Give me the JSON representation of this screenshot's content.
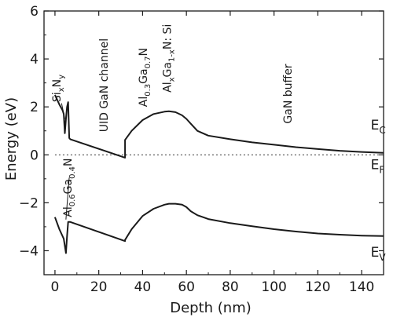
{
  "chart_data": {
    "type": "line",
    "xlabel": "Depth (nm)",
    "ylabel": "Energy (eV)",
    "xlim": [
      -5,
      150
    ],
    "ylim": [
      -5,
      6
    ],
    "xticks": [
      "0",
      "20",
      "40",
      "60",
      "80",
      "100",
      "120",
      "140"
    ],
    "yticks": [
      "-4",
      "-2",
      "0",
      "2",
      "4",
      "6"
    ],
    "grid": false,
    "series": [
      {
        "key": "ec",
        "x": [
          0,
          2,
          3.5,
          4,
          4.5,
          5,
          5.5,
          6,
          6.5,
          7,
          32,
          32,
          35,
          40,
          45,
          50,
          52,
          55,
          58,
          60,
          61,
          62,
          65,
          70,
          80,
          90,
          100,
          110,
          120,
          130,
          140,
          150
        ],
        "y": [
          2.5,
          2.1,
          1.85,
          1.7,
          0.9,
          1.5,
          2.0,
          2.2,
          0.7,
          0.65,
          -0.12,
          0.62,
          1.0,
          1.45,
          1.7,
          1.8,
          1.82,
          1.78,
          1.65,
          1.5,
          1.4,
          1.3,
          1.0,
          0.8,
          0.65,
          0.52,
          0.42,
          0.32,
          0.24,
          0.17,
          0.12,
          0.08
        ]
      },
      {
        "key": "ev",
        "x": [
          0,
          2,
          4,
          5,
          5.5,
          6,
          7,
          32,
          32,
          35,
          40,
          45,
          50,
          52,
          55,
          58,
          60,
          62,
          65,
          70,
          80,
          90,
          100,
          110,
          120,
          130,
          140,
          150
        ],
        "y": [
          -2.6,
          -3.1,
          -3.5,
          -4.1,
          -3.4,
          -2.8,
          -2.8,
          -3.6,
          -3.55,
          -3.1,
          -2.55,
          -2.25,
          -2.08,
          -2.04,
          -2.04,
          -2.08,
          -2.18,
          -2.35,
          -2.52,
          -2.68,
          -2.85,
          -2.98,
          -3.1,
          -3.2,
          -3.28,
          -3.33,
          -3.37,
          -3.39
        ]
      }
    ],
    "ef_level": 0,
    "band_labels": [
      {
        "main": "E",
        "sub": "C",
        "x": 152,
        "y": 1.05
      },
      {
        "main": "E",
        "sub": "F",
        "x": 152,
        "y": -0.6
      },
      {
        "main": "E",
        "sub": "V",
        "x": 152,
        "y": -4.25
      }
    ],
    "annotations": [
      {
        "key": "sixny",
        "parts": [
          {
            "t": "Si"
          },
          {
            "t": "x",
            "s": true
          },
          {
            "t": "N"
          },
          {
            "t": "y",
            "s": true
          }
        ],
        "x": 2.5,
        "y": 2.2,
        "rotate": -90
      },
      {
        "key": "uid",
        "parts": [
          {
            "t": "UID GaN channel"
          }
        ],
        "x": 24,
        "y": 0.95,
        "rotate": -90
      },
      {
        "key": "algan03",
        "parts": [
          {
            "t": "Al"
          },
          {
            "t": "0.3",
            "s": true
          },
          {
            "t": "Ga"
          },
          {
            "t": "0.7",
            "s": true
          },
          {
            "t": "N"
          }
        ],
        "x": 42,
        "y": 2.0,
        "rotate": -90
      },
      {
        "key": "alxgan",
        "parts": [
          {
            "t": "Al"
          },
          {
            "t": "x",
            "s": true
          },
          {
            "t": "Ga"
          },
          {
            "t": "1-x",
            "s": true
          },
          {
            "t": "N: Si"
          }
        ],
        "x": 53,
        "y": 2.6,
        "rotate": -90
      },
      {
        "key": "ganbuffer",
        "parts": [
          {
            "t": "GaN buffer"
          }
        ],
        "x": 108,
        "y": 1.3,
        "rotate": -90
      },
      {
        "key": "algan06",
        "parts": [
          {
            "t": "Al"
          },
          {
            "t": "0.6",
            "s": true
          },
          {
            "t": "Ga"
          },
          {
            "t": "0.4",
            "s": true
          },
          {
            "t": "N"
          }
        ],
        "x": 7.5,
        "y": -2.6,
        "rotate": -90
      }
    ],
    "pointers": [
      {
        "key": "sixny-pointer",
        "from": [
          3.0,
          2.15
        ],
        "to": [
          4.5,
          1.5
        ]
      },
      {
        "key": "algan06-pointer",
        "from": [
          6.5,
          -0.95
        ],
        "to": [
          5.0,
          -2.7
        ]
      }
    ]
  }
}
